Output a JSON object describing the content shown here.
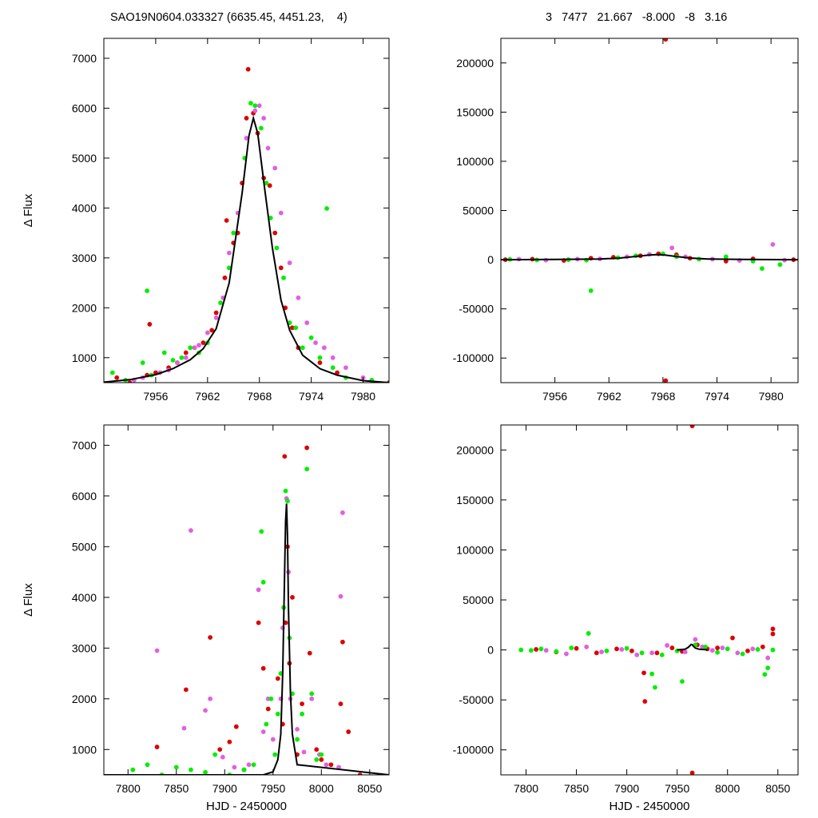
{
  "header": {
    "left": "SAO19N0604.033327 (6635.45, 4451.23,    4)",
    "right": "3   7477   21.667   -8.000   -8   3.16"
  },
  "colors": {
    "red": "#dd0000",
    "magenta": "#e060e0",
    "green": "#00ee00",
    "model": "#000000"
  },
  "chart_data": [
    {
      "type": "scatter",
      "panel": "top-left",
      "ylabel": "Δ Flux",
      "xlabel": "",
      "xlim": [
        7950,
        7983
      ],
      "ylim": [
        500,
        7400
      ],
      "xticks": [
        7956,
        7962,
        7968,
        7974,
        7980
      ],
      "yticks": [
        1000,
        2000,
        3000,
        4000,
        5000,
        6000,
        7000
      ],
      "series": [
        {
          "color": "red",
          "x": [
            7951.5,
            7953.0,
            7955.0,
            7956.0,
            7957.5,
            7958.5,
            7959.5,
            7960.5,
            7961.5,
            7962.5,
            7963.0,
            7964.0,
            7965.0,
            7965.5,
            7966.0,
            7966.5,
            7966.7,
            7967.3,
            7967.8,
            7968.5,
            7969.2,
            7969.8,
            7970.5,
            7971.0,
            7971.8,
            7972.5,
            7975.0,
            7977.0,
            7983.0,
            7955.3,
            7964.2
          ],
          "y": [
            600,
            500,
            650,
            700,
            800,
            900,
            1100,
            1200,
            1300,
            1550,
            1900,
            2600,
            3300,
            3500,
            4500,
            5800,
            6780,
            5900,
            5500,
            4600,
            4450,
            3500,
            2800,
            2000,
            1600,
            1200,
            900,
            700,
            500,
            1670,
            3750
          ]
        },
        {
          "color": "magenta",
          "x": [
            7953.5,
            7954.5,
            7956.5,
            7957.5,
            7958.5,
            7959.5,
            7960.5,
            7961.0,
            7962.0,
            7963.0,
            7963.8,
            7964.5,
            7965.5,
            7966.5,
            7967.5,
            7968.0,
            7968.5,
            7969.0,
            7969.8,
            7970.5,
            7971.5,
            7972.5,
            7973.5,
            7974.5,
            7975.5,
            7976.5,
            7978.0,
            7980.0
          ],
          "y": [
            550,
            600,
            700,
            750,
            900,
            1000,
            1200,
            1250,
            1500,
            1800,
            2200,
            3100,
            3900,
            5400,
            5950,
            6050,
            5800,
            5200,
            4800,
            3900,
            2900,
            2200,
            1700,
            1300,
            1200,
            1000,
            800,
            600
          ]
        },
        {
          "color": "green",
          "x": [
            7951.0,
            7952.5,
            7954.5,
            7955.5,
            7957.0,
            7958.0,
            7959.0,
            7960.0,
            7961.0,
            7962.0,
            7963.5,
            7964.5,
            7965.0,
            7966.3,
            7967.0,
            7967.5,
            7968.2,
            7968.8,
            7969.3,
            7970.0,
            7970.8,
            7971.5,
            7972.2,
            7973.0,
            7974.0,
            7975.0,
            7975.8,
            7976.5,
            7978.0,
            7981.0,
            7955.0
          ],
          "y": [
            700,
            550,
            900,
            650,
            1100,
            950,
            1000,
            1200,
            1100,
            1300,
            2100,
            2800,
            3500,
            5000,
            6100,
            6050,
            5600,
            4500,
            3800,
            3200,
            2600,
            1700,
            1600,
            1200,
            1400,
            1000,
            3990,
            800,
            600,
            550,
            2340
          ]
        }
      ],
      "model": {
        "x": [
          7950,
          7953,
          7956,
          7958,
          7960,
          7961.5,
          7963,
          7964.5,
          7966,
          7966.8,
          7967.3,
          7967.8,
          7968.6,
          7969.5,
          7970.5,
          7971.5,
          7973,
          7975,
          7977,
          7980,
          7983
        ],
        "y": [
          510,
          560,
          660,
          780,
          960,
          1180,
          1580,
          2500,
          4300,
          5450,
          5800,
          5500,
          4400,
          3200,
          2150,
          1550,
          1050,
          780,
          650,
          540,
          500
        ]
      }
    },
    {
      "type": "scatter",
      "panel": "top-right",
      "ylabel": "",
      "xlabel": "",
      "xlim": [
        7950,
        7983
      ],
      "ylim": [
        -125000,
        225000
      ],
      "xticks": [
        7956,
        7962,
        7968,
        7974,
        7980
      ],
      "yticks": [
        -100000,
        -50000,
        0,
        50000,
        100000,
        150000,
        200000
      ],
      "series": [
        {
          "color": "red",
          "x": [
            7950.5,
            7953.5,
            7957.0,
            7960.0,
            7962.5,
            7965.5,
            7967.5,
            7968.3,
            7968.3,
            7969.5,
            7971.0,
            7975.0,
            7978.0,
            7982.5
          ],
          "y": [
            0,
            500,
            -800,
            1500,
            2500,
            4000,
            6000,
            224000,
            -123000,
            5000,
            1500,
            -1500,
            800,
            0
          ]
        },
        {
          "color": "magenta",
          "x": [
            7952.0,
            7955.0,
            7958.5,
            7961.0,
            7964.0,
            7966.5,
            7969.0,
            7970.5,
            7973.5,
            7976.5,
            7980.2,
            7981.5
          ],
          "y": [
            500,
            -500,
            500,
            800,
            3000,
            5500,
            12000,
            3000,
            500,
            -800,
            15500,
            -500
          ]
        },
        {
          "color": "green",
          "x": [
            7951.0,
            7954.0,
            7957.5,
            7959.5,
            7960.0,
            7963.0,
            7965.0,
            7968.0,
            7969.5,
            7972.0,
            7975.0,
            7978.0,
            7979.0,
            7981.0
          ],
          "y": [
            300,
            -300,
            0,
            -500,
            -31500,
            2000,
            4000,
            6000,
            3000,
            500,
            3000,
            -1500,
            -9000,
            -5000
          ]
        }
      ],
      "model": {
        "x": [
          7950,
          7956,
          7961,
          7963,
          7965,
          7966.5,
          7967.3,
          7968.2,
          7969.5,
          7971,
          7973,
          7977,
          7983
        ],
        "y": [
          0,
          200,
          700,
          1500,
          3300,
          4800,
          5200,
          4700,
          3200,
          1700,
          700,
          200,
          0
        ]
      }
    },
    {
      "type": "scatter",
      "panel": "bottom-left",
      "ylabel": "Δ Flux",
      "xlabel": "HJD - 2450000",
      "xlim": [
        7775,
        8070
      ],
      "ylim": [
        500,
        7400
      ],
      "xticks": [
        7800,
        7850,
        7900,
        7950,
        8000,
        8050
      ],
      "yticks": [
        1000,
        2000,
        3000,
        4000,
        5000,
        6000,
        7000
      ],
      "series": [
        {
          "color": "red",
          "x": [
            7830,
            7860,
            7885,
            7895,
            7905,
            7912,
            7920,
            7935,
            7940,
            7945,
            7955,
            7960,
            7962,
            7963,
            7965,
            7967,
            7970,
            7975,
            7980,
            7985,
            7988,
            7995,
            8000,
            8010,
            8020,
            8022,
            8028,
            8040
          ],
          "y": [
            1050,
            2180,
            3210,
            1000,
            1150,
            1450,
            600,
            3500,
            2600,
            1800,
            2400,
            1500,
            6780,
            3500,
            5000,
            2700,
            4000,
            900,
            1900,
            6950,
            2900,
            1000,
            800,
            700,
            1900,
            3120,
            1350,
            500
          ]
        },
        {
          "color": "magenta",
          "x": [
            7830,
            7858,
            7865,
            7880,
            7885,
            7898,
            7910,
            7925,
            7935,
            7940,
            7945,
            7950,
            7958,
            7960,
            7964,
            7966,
            7968,
            7975,
            7982,
            7990,
            7998,
            8005,
            8018,
            8020,
            8022
          ],
          "y": [
            2950,
            1420,
            5320,
            1770,
            2000,
            850,
            650,
            700,
            4150,
            1350,
            2000,
            1200,
            2000,
            3400,
            5950,
            4500,
            2000,
            1400,
            950,
            2000,
            900,
            700,
            650,
            4020,
            5670
          ]
        },
        {
          "color": "green",
          "x": [
            7805,
            7820,
            7835,
            7850,
            7865,
            7880,
            7890,
            7905,
            7920,
            7930,
            7938,
            7940,
            7943,
            7948,
            7952,
            7955,
            7958,
            7961,
            7963,
            7965,
            7967,
            7970,
            7975,
            7980,
            7985,
            7990,
            7995,
            8000
          ],
          "y": [
            600,
            700,
            500,
            650,
            600,
            550,
            900,
            500,
            600,
            700,
            5300,
            4300,
            1500,
            2000,
            900,
            1700,
            2500,
            3800,
            6100,
            5900,
            3200,
            2100,
            1200,
            1700,
            6530,
            2100,
            800,
            900
          ]
        }
      ],
      "model": {
        "x": [
          7775,
          7940,
          7950,
          7955,
          7958,
          7960,
          7962,
          7963,
          7964,
          7965,
          7966,
          7968,
          7970,
          7975,
          8070
        ],
        "y": [
          500,
          500,
          560,
          800,
          1300,
          2500,
          4500,
          5500,
          5850,
          5200,
          3800,
          2100,
          1300,
          700,
          500
        ]
      }
    },
    {
      "type": "scatter",
      "panel": "bottom-right",
      "ylabel": "",
      "xlabel": "HJD - 2450000",
      "xlim": [
        7775,
        8070
      ],
      "ylim": [
        -125000,
        225000
      ],
      "xticks": [
        7800,
        7850,
        7900,
        7950,
        8000,
        8050
      ],
      "yticks": [
        -100000,
        -50000,
        0,
        50000,
        100000,
        150000,
        200000
      ],
      "series": [
        {
          "color": "red",
          "x": [
            7810,
            7830,
            7850,
            7870,
            7890,
            7905,
            7917,
            7918,
            7930,
            7945,
            7955,
            7965,
            7965,
            7970,
            7980,
            7990,
            8005,
            8020,
            8035,
            8045,
            8045
          ],
          "y": [
            500,
            -2000,
            1500,
            -3000,
            1000,
            -1000,
            -23000,
            -51500,
            -3000,
            2000,
            -1500,
            224000,
            -123000,
            5000,
            1000,
            2000,
            12000,
            -1000,
            3000,
            21000,
            16000
          ]
        },
        {
          "color": "magenta",
          "x": [
            7820,
            7840,
            7860,
            7875,
            7895,
            7910,
            7925,
            7940,
            7958,
            7968,
            7975,
            7985,
            7995,
            8010,
            8025,
            8040
          ],
          "y": [
            -500,
            -4000,
            3000,
            -2000,
            500,
            -5000,
            -3000,
            4500,
            -2000,
            10500,
            3000,
            -500,
            2000,
            -3000,
            1000,
            -8000
          ]
        },
        {
          "color": "green",
          "x": [
            7795,
            7805,
            7815,
            7830,
            7845,
            7862,
            7880,
            7900,
            7915,
            7925,
            7928,
            7935,
            7950,
            7955,
            7968,
            7978,
            7990,
            8000,
            8015,
            8030,
            8037,
            8040,
            8045
          ],
          "y": [
            0,
            -500,
            1000,
            -1500,
            2000,
            16500,
            -1000,
            1500,
            -3000,
            -24000,
            -37500,
            -5000,
            -1000,
            -31500,
            5000,
            3000,
            -2500,
            1000,
            -4000,
            500,
            -24500,
            -18000,
            0
          ]
        }
      ],
      "model": {
        "x": [
          7950,
          7958,
          7961,
          7963,
          7964,
          7965,
          7966,
          7968,
          7972,
          7980
        ],
        "y": [
          0,
          800,
          2500,
          4500,
          5500,
          5200,
          3800,
          1800,
          600,
          100
        ]
      }
    }
  ]
}
